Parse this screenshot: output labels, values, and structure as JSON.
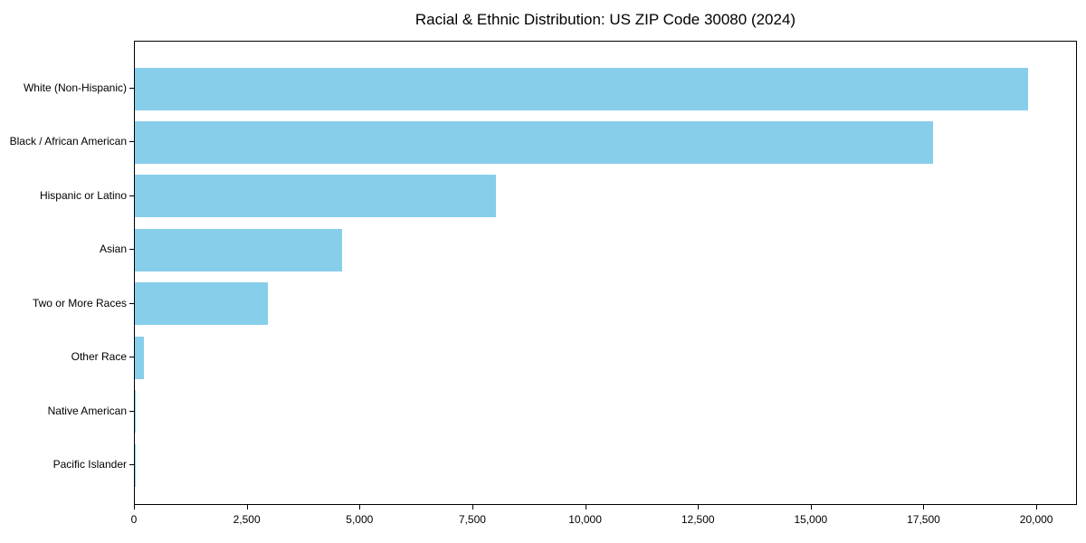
{
  "figure": {
    "title": "Racial & Ethnic Distribution: US ZIP Code 30080 (2024)",
    "background_color": "#ffffff"
  },
  "chart_data": {
    "type": "bar",
    "orientation": "horizontal",
    "title": "Racial & Ethnic Distribution: US ZIP Code 30080 (2024)",
    "categories": [
      "White (Non-Hispanic)",
      "Black / African American",
      "Hispanic or Latino",
      "Asian",
      "Two or More Races",
      "Other Race",
      "Native American",
      "Pacific Islander"
    ],
    "values": [
      19800,
      17700,
      8000,
      4600,
      2950,
      200,
      30,
      10
    ],
    "xlabel": "",
    "ylabel": "",
    "xlim": [
      0,
      20900
    ],
    "xticks": [
      0,
      2500,
      5000,
      7500,
      10000,
      12500,
      15000,
      17500,
      20000
    ],
    "xtick_labels": [
      "0",
      "2,500",
      "5,000",
      "7,500",
      "10,000",
      "12,500",
      "15,000",
      "17,500",
      "20,000"
    ],
    "bar_color": "#87CEEB",
    "grid": false,
    "legend": null,
    "plot_border": "boxed"
  }
}
